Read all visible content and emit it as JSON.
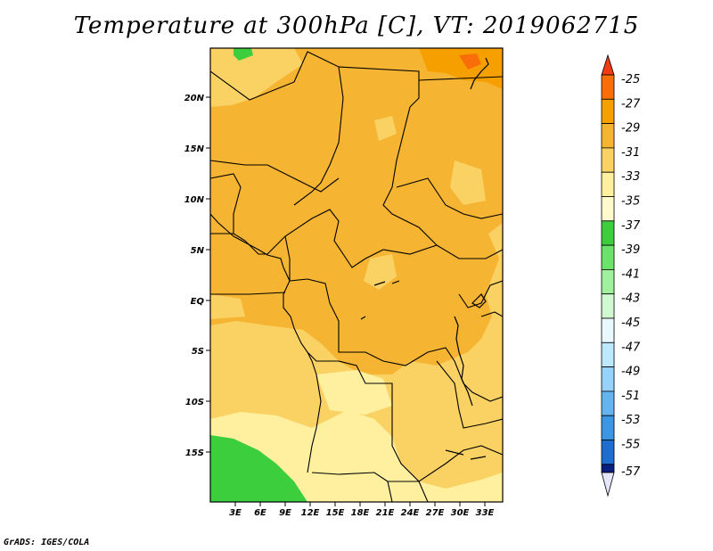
{
  "title": "Temperature at 300hPa [C], VT: 2019062715",
  "credit": "GrADS: IGES/COLA",
  "map": {
    "lat_labels": [
      "20N",
      "15N",
      "10N",
      "5N",
      "EQ",
      "5S",
      "10S",
      "15S"
    ],
    "lon_labels": [
      "3E",
      "6E",
      "9E",
      "12E",
      "15E",
      "18E",
      "21E",
      "24E",
      "27E",
      "30E",
      "33E"
    ]
  },
  "colorbar": {
    "labels": [
      "-25",
      "-27",
      "-29",
      "-31",
      "-33",
      "-35",
      "-37",
      "-39",
      "-41",
      "-43",
      "-45",
      "-47",
      "-49",
      "-51",
      "-53",
      "-55",
      "-57"
    ],
    "colors": [
      "#f03c14",
      "#fa6e0a",
      "#f5a000",
      "#f5b432",
      "#fad264",
      "#fff0a0",
      "#3cce3c",
      "#6ae36a",
      "#a0f0a0",
      "#d2f8d2",
      "#e8f8fc",
      "#bee8fc",
      "#96d2fa",
      "#64b4f0",
      "#3c96e6",
      "#1e6ed2",
      "#0a46b4",
      "#0a1e82",
      "#e6e6fa"
    ]
  }
}
